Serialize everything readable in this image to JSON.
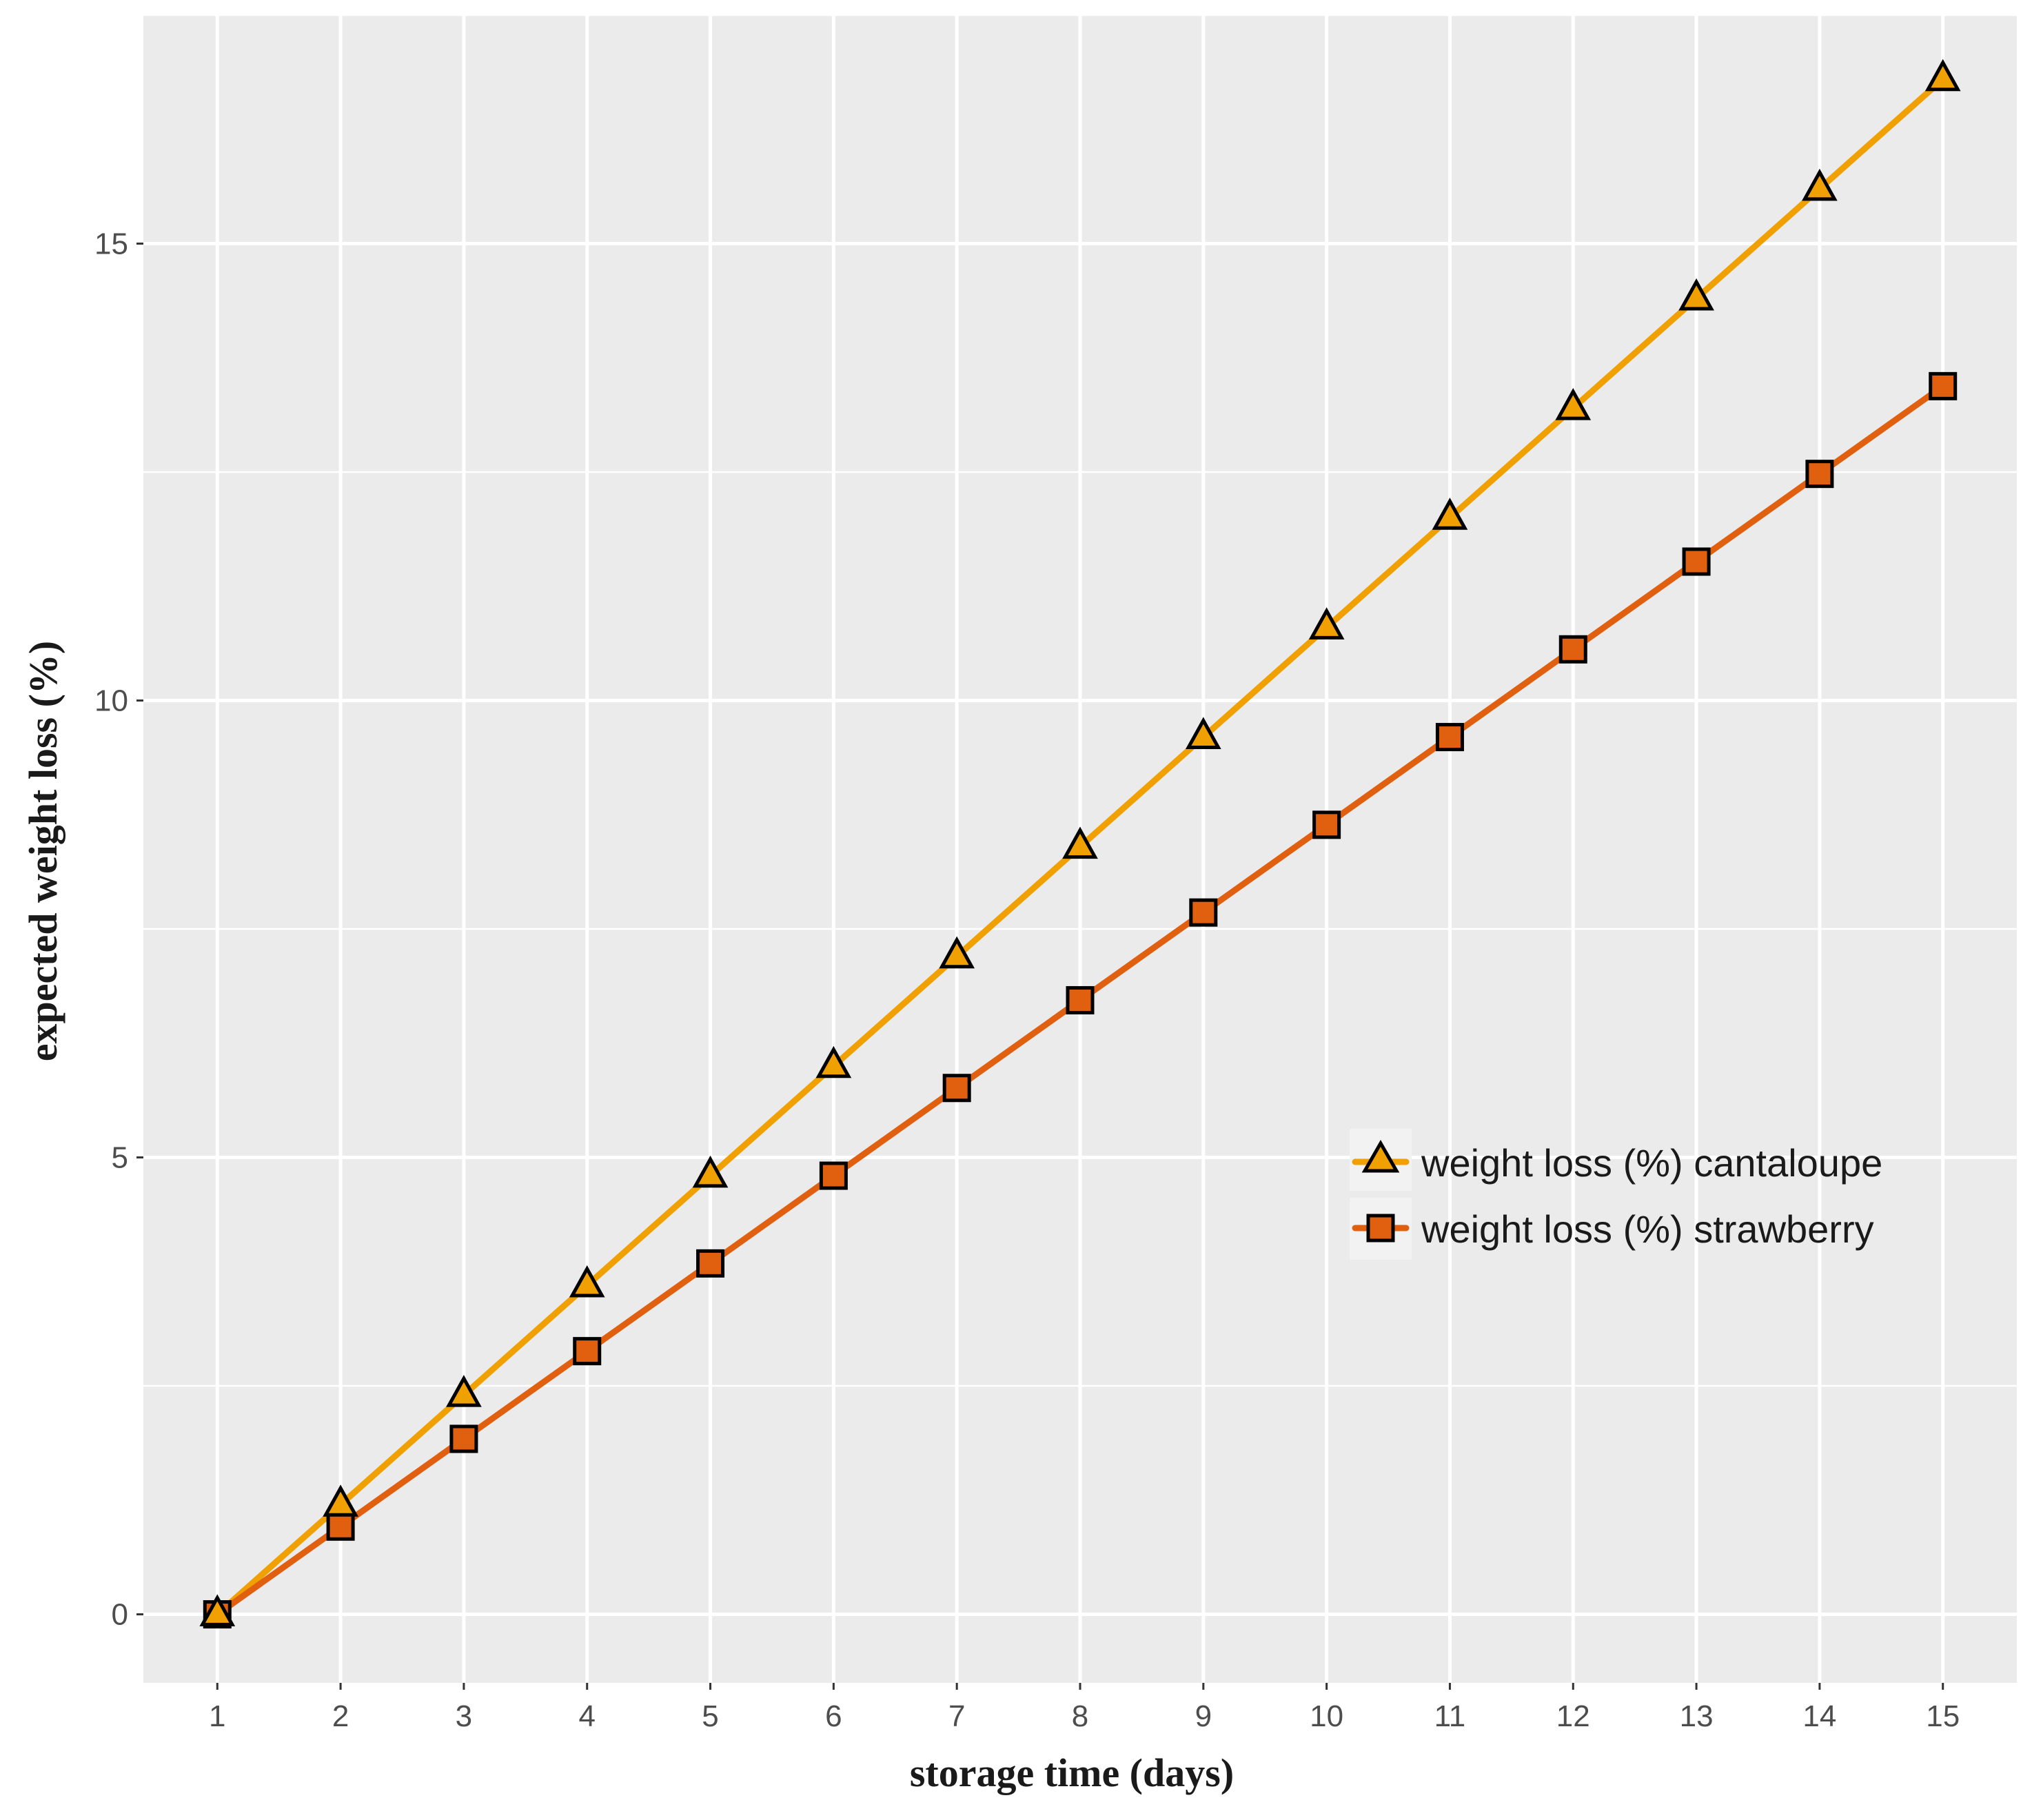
{
  "chart_data": {
    "type": "line",
    "title": "",
    "xlabel": "storage time (days)",
    "ylabel": "expected weight loss (%)",
    "x": [
      1,
      2,
      3,
      4,
      5,
      6,
      7,
      8,
      9,
      10,
      11,
      12,
      13,
      14,
      15
    ],
    "xticks": [
      "1",
      "2",
      "3",
      "4",
      "5",
      "6",
      "7",
      "8",
      "9",
      "10",
      "11",
      "12",
      "13",
      "14",
      "15"
    ],
    "yticks": [
      "0",
      "5",
      "10",
      "15"
    ],
    "ytick_values": [
      0,
      5,
      10,
      15
    ],
    "xlim": [
      0.4,
      15.6
    ],
    "ylim": [
      -0.75,
      17.5
    ],
    "grid": true,
    "legend_position": "right-middle",
    "series": [
      {
        "name": "weight loss (%) cantaloupe",
        "marker": "triangle",
        "color": "#f0a000",
        "values": [
          0,
          1.2,
          2.4,
          3.6,
          4.8,
          6.0,
          7.2,
          8.4,
          9.6,
          10.8,
          12.0,
          13.2,
          14.4,
          15.6,
          16.8
        ]
      },
      {
        "name": "weight loss (%) strawberry",
        "marker": "square",
        "color": "#e06010",
        "values": [
          0,
          0.96,
          1.92,
          2.88,
          3.84,
          4.8,
          5.76,
          6.72,
          7.68,
          8.64,
          9.6,
          10.56,
          11.52,
          12.48,
          13.44
        ]
      }
    ]
  }
}
